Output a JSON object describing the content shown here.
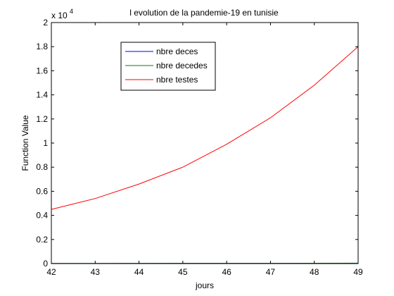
{
  "chart_data": {
    "type": "line",
    "title": "l evolution de la pandemie-19 en tunisie",
    "xlabel": "jours",
    "ylabel": "Function Value",
    "y_multiplier_label": "x 10",
    "y_multiplier_exponent": "4",
    "xlim": [
      42,
      49
    ],
    "ylim": [
      0,
      2
    ],
    "x_ticks": [
      "42",
      "43",
      "44",
      "45",
      "46",
      "47",
      "48",
      "49"
    ],
    "y_ticks": [
      "0",
      "0.2",
      "0.4",
      "0.6",
      "0.8",
      "1",
      "1.2",
      "1.4",
      "1.6",
      "1.8",
      "2"
    ],
    "grid": false,
    "legend_position": "top-left",
    "x": [
      42,
      43,
      44,
      45,
      46,
      47,
      48,
      49
    ],
    "series": [
      {
        "name": "nbre deces",
        "color": "#0000ff",
        "values": [
          0.0006,
          0.0007,
          0.0008,
          0.0009,
          0.001,
          0.001,
          0.0011,
          0.0012
        ]
      },
      {
        "name": "nbre decedes",
        "color": "#008000",
        "values": [
          0.002,
          0.002,
          0.0021,
          0.0022,
          0.0023,
          0.0024,
          0.003,
          0.0035
        ]
      },
      {
        "name": "nbre testes",
        "color": "#ff0000",
        "values": [
          0.45,
          0.54,
          0.66,
          0.8,
          0.99,
          1.21,
          1.48,
          1.8
        ]
      }
    ]
  }
}
